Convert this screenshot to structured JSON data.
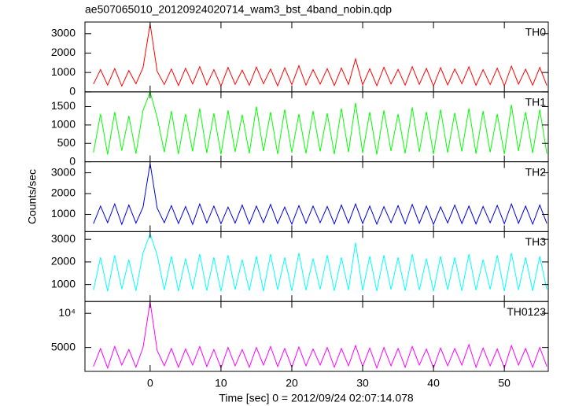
{
  "title": "ae507065010_20120924020714_wam3_bst_4band_nobin.qdp",
  "xlabel": "Time [sec] 0 = 2012/09/24 02:07:14.078",
  "ylabel": "Counts/sec",
  "xlim": [
    -9.2,
    56.2
  ],
  "xticks": [
    0,
    10,
    20,
    30,
    40,
    50
  ],
  "chart_data": [
    {
      "type": "line",
      "ylim": [
        0,
        3600
      ],
      "yticks": [
        0,
        1000,
        2000,
        3000
      ],
      "x": [
        -8,
        -7,
        -6,
        -5,
        -4,
        -3,
        -2,
        -1,
        0,
        1,
        2,
        3,
        4,
        5,
        6,
        7,
        8,
        9,
        10,
        11,
        12,
        13,
        14,
        15,
        16,
        17,
        18,
        19,
        20,
        21,
        22,
        23,
        24,
        25,
        26,
        27,
        28,
        29,
        30,
        31,
        32,
        33,
        34,
        35,
        36,
        37,
        38,
        39,
        40,
        41,
        42,
        43,
        44,
        45,
        46,
        47,
        48,
        49,
        50,
        51,
        52,
        53,
        54,
        55,
        56
      ],
      "series": [
        {
          "name": "TH0",
          "color": "#ff0000",
          "values": [
            400,
            1150,
            350,
            1200,
            300,
            1100,
            420,
            1250,
            3500,
            1050,
            380,
            1180,
            330,
            1220,
            410,
            1300,
            360,
            1150,
            300,
            1260,
            390,
            1120,
            340,
            1280,
            420,
            1180,
            310,
            1240,
            370,
            1350,
            350,
            1150,
            400,
            1200,
            330,
            1230,
            380,
            1700,
            360,
            1190,
            320,
            1270,
            410,
            1160,
            350,
            1300,
            390,
            1210,
            300,
            1250,
            360,
            1180,
            420,
            1290,
            340,
            1150,
            380,
            1220,
            310,
            1330,
            400,
            1170,
            350,
            1260,
            330
          ]
        }
      ]
    },
    {
      "type": "line",
      "ylim": [
        0,
        1900
      ],
      "yticks": [
        0,
        500,
        1000,
        1500
      ],
      "x": [
        -8,
        -7,
        -6,
        -5,
        -4,
        -3,
        -2,
        -1,
        0,
        1,
        2,
        3,
        4,
        5,
        6,
        7,
        8,
        9,
        10,
        11,
        12,
        13,
        14,
        15,
        16,
        17,
        18,
        19,
        20,
        21,
        22,
        23,
        24,
        25,
        26,
        27,
        28,
        29,
        30,
        31,
        32,
        33,
        34,
        35,
        36,
        37,
        38,
        39,
        40,
        41,
        42,
        43,
        44,
        45,
        46,
        47,
        48,
        49,
        50,
        51,
        52,
        53,
        54,
        55,
        56
      ],
      "series": [
        {
          "name": "TH1",
          "color": "#00ff00",
          "values": [
            250,
            1300,
            200,
            1350,
            300,
            1250,
            220,
            1400,
            1900,
            1200,
            260,
            1380,
            210,
            1300,
            280,
            1450,
            240,
            1320,
            200,
            1400,
            270,
            1280,
            230,
            1500,
            290,
            1350,
            210,
            1420,
            250,
            1300,
            230,
            1380,
            280,
            1320,
            210,
            1450,
            260,
            1600,
            240,
            1350,
            200,
            1400,
            290,
            1300,
            230,
            1480,
            270,
            1360,
            210,
            1420,
            250,
            1330,
            280,
            1450,
            220,
            1380,
            260,
            1300,
            210,
            1550,
            290,
            1350,
            240,
            1420,
            220
          ]
        }
      ]
    },
    {
      "type": "line",
      "ylim": [
        170,
        3530
      ],
      "yticks": [
        1000,
        2000,
        3000
      ],
      "x": [
        -8,
        -7,
        -6,
        -5,
        -4,
        -3,
        -2,
        -1,
        0,
        1,
        2,
        3,
        4,
        5,
        6,
        7,
        8,
        9,
        10,
        11,
        12,
        13,
        14,
        15,
        16,
        17,
        18,
        19,
        20,
        21,
        22,
        23,
        24,
        25,
        26,
        27,
        28,
        29,
        30,
        31,
        32,
        33,
        34,
        35,
        36,
        37,
        38,
        39,
        40,
        41,
        42,
        43,
        44,
        45,
        46,
        47,
        48,
        49,
        50,
        51,
        52,
        53,
        54,
        55,
        56
      ],
      "series": [
        {
          "name": "TH2",
          "color": "#0000e0",
          "values": [
            550,
            1400,
            600,
            1500,
            520,
            1450,
            580,
            1350,
            3450,
            1300,
            600,
            1420,
            560,
            1380,
            520,
            1500,
            590,
            1400,
            550,
            1350,
            580,
            1450,
            540,
            1400,
            610,
            1480,
            560,
            1350,
            530,
            1420,
            570,
            1400,
            600,
            1380,
            540,
            1450,
            580,
            1500,
            560,
            1400,
            530,
            1370,
            600,
            1420,
            550,
            1480,
            570,
            1400,
            520,
            1360,
            590,
            1450,
            560,
            1400,
            540,
            1380,
            600,
            1430,
            550,
            1500,
            570,
            1400,
            530,
            1450,
            560
          ]
        }
      ]
    },
    {
      "type": "line",
      "ylim": [
        250,
        3340
      ],
      "yticks": [
        1000,
        2000,
        3000
      ],
      "x": [
        -8,
        -7,
        -6,
        -5,
        -4,
        -3,
        -2,
        -1,
        0,
        1,
        2,
        3,
        4,
        5,
        6,
        7,
        8,
        9,
        10,
        11,
        12,
        13,
        14,
        15,
        16,
        17,
        18,
        19,
        20,
        21,
        22,
        23,
        24,
        25,
        26,
        27,
        28,
        29,
        30,
        31,
        32,
        33,
        34,
        35,
        36,
        37,
        38,
        39,
        40,
        41,
        42,
        43,
        44,
        45,
        46,
        47,
        48,
        49,
        50,
        51,
        52,
        53,
        54,
        55,
        56
      ],
      "series": [
        {
          "name": "TH3",
          "color": "#00ffff",
          "values": [
            750,
            2200,
            700,
            2300,
            800,
            2100,
            720,
            2400,
            3250,
            2300,
            760,
            2250,
            710,
            2150,
            790,
            2350,
            730,
            2200,
            700,
            2300,
            780,
            2100,
            740,
            2250,
            710,
            2350,
            770,
            2200,
            720,
            2400,
            750,
            2150,
            790,
            2300,
            720,
            2200,
            760,
            2850,
            740,
            2250,
            710,
            2300,
            780,
            2200,
            730,
            2350,
            760,
            2150,
            700,
            2250,
            770,
            2200,
            720,
            2350,
            750,
            2100,
            790,
            2300,
            710,
            2400,
            760,
            2200,
            730,
            2250,
            780
          ]
        }
      ]
    },
    {
      "type": "line",
      "log": true,
      "ylim": [
        3080,
        12700
      ],
      "yticks": [
        5000,
        {
          "value": 10000,
          "label": "10⁴"
        }
      ],
      "x": [
        -8,
        -7,
        -6,
        -5,
        -4,
        -3,
        -2,
        -1,
        0,
        1,
        2,
        3,
        4,
        5,
        6,
        7,
        8,
        9,
        10,
        11,
        12,
        13,
        14,
        15,
        16,
        17,
        18,
        19,
        20,
        21,
        22,
        23,
        24,
        25,
        26,
        27,
        28,
        29,
        30,
        31,
        32,
        33,
        34,
        35,
        36,
        37,
        38,
        39,
        40,
        41,
        42,
        43,
        44,
        45,
        46,
        47,
        48,
        49,
        50,
        51,
        52,
        53,
        54,
        55,
        56
      ],
      "series": [
        {
          "name": "TH0123",
          "color": "#ff00ff",
          "values": [
            3400,
            4900,
            3300,
            5100,
            3500,
            4800,
            3350,
            5000,
            12600,
            4700,
            3450,
            4900,
            3350,
            4850,
            3500,
            5100,
            3400,
            4800,
            3300,
            5000,
            3450,
            4800,
            3350,
            5000,
            3500,
            5100,
            3400,
            4900,
            3350,
            5050,
            3450,
            4850,
            3500,
            5000,
            3350,
            4900,
            3450,
            5200,
            3400,
            4950,
            3300,
            5000,
            3450,
            4900,
            3350,
            5100,
            3500,
            4850,
            3300,
            4950,
            3450,
            4900,
            3500,
            5300,
            3350,
            4950,
            3450,
            4850,
            3300,
            5200,
            3500,
            4900,
            3350,
            5000,
            3400
          ]
        }
      ]
    }
  ]
}
